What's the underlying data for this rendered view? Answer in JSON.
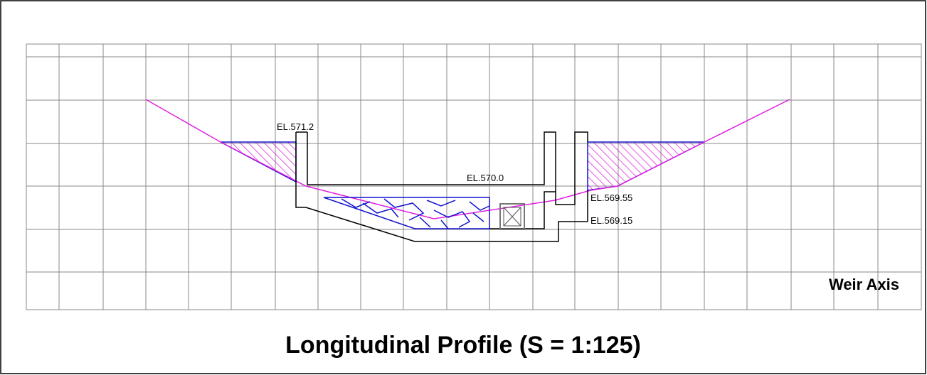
{
  "labels": {
    "el_571_2": "EL.571.2",
    "el_570_0": "EL.570.0",
    "el_569_55": "EL.569.55",
    "el_569_15": "EL.569.15",
    "weir_axis": "Weir Axis"
  },
  "title": "Longitudinal Profile (S = 1:125)"
}
